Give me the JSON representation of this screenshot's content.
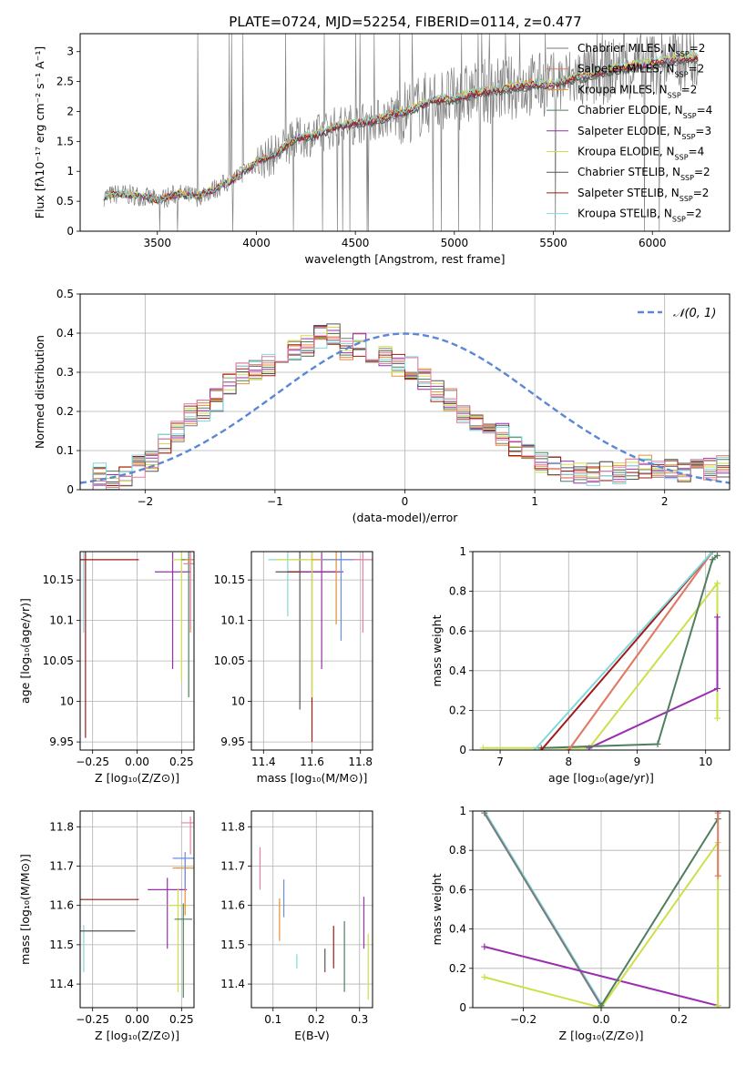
{
  "figure_title": "PLATE=0724, MJD=52254, FIBERID=0114, z=0.477",
  "colors": {
    "chabrier_miles": "#7a7a7a",
    "salpeter_miles": "#e07b6c",
    "kroupa_miles": "#e8902e",
    "chabrier_elodie": "#4f7f5f",
    "salpeter_elodie": "#9a2fb0",
    "kroupa_elodie": "#cde04a",
    "chabrier_stelib": "#555555",
    "salpeter_stelib": "#a31818",
    "kroupa_stelib": "#7fd9df",
    "normal_curve": "#5b87d6",
    "extra_pink": "#e47fa8",
    "extra_blue": "#6a8fe0"
  },
  "chart_data": [
    {
      "id": "spectrum",
      "type": "line",
      "title": "PLATE=0724, MJD=52254, FIBERID=0114, z=0.477",
      "xlabel": "wavelength [Angstrom, rest frame]",
      "ylabel": "Flux [fλ10⁻¹⁷ erg cm⁻² s⁻¹ A⁻¹]",
      "xlim": [
        3110,
        6390
      ],
      "ylim": [
        0,
        3.3
      ],
      "xticks": [
        3500,
        4000,
        4500,
        5000,
        5500,
        6000
      ],
      "yticks": [
        0.0,
        0.5,
        1.0,
        1.5,
        2.0,
        2.5,
        3.0
      ],
      "grid": false,
      "legend": "top-right",
      "data_anchor_x": [
        3230,
        3300,
        3400,
        3500,
        3600,
        3700,
        3800,
        3900,
        4000,
        4100,
        4200,
        4300,
        4400,
        4500,
        4600,
        4700,
        4800,
        4900,
        5000,
        5100,
        5200,
        5300,
        5400,
        5500,
        5600,
        5700,
        5800,
        5900,
        6000,
        6100,
        6200
      ],
      "data_model_y": [
        0.58,
        0.62,
        0.6,
        0.52,
        0.62,
        0.58,
        0.72,
        0.9,
        1.15,
        1.3,
        1.55,
        1.6,
        1.75,
        1.8,
        1.85,
        1.95,
        2.05,
        2.2,
        2.2,
        2.3,
        2.35,
        2.4,
        2.45,
        2.45,
        2.55,
        2.6,
        2.7,
        2.75,
        2.8,
        2.85,
        2.9
      ],
      "series": [
        {
          "name": "Chabrier MILES, N_SSP=2",
          "color_key": "chabrier_miles"
        },
        {
          "name": "Salpeter MILES, N_SSP=2",
          "color_key": "salpeter_miles"
        },
        {
          "name": "Kroupa MILES, N_SSP=2",
          "color_key": "kroupa_miles"
        },
        {
          "name": "Chabrier ELODIE, N_SSP=4",
          "color_key": "chabrier_elodie"
        },
        {
          "name": "Salpeter ELODIE, N_SSP=3",
          "color_key": "salpeter_elodie"
        },
        {
          "name": "Kroupa ELODIE, N_SSP=4",
          "color_key": "kroupa_elodie"
        },
        {
          "name": "Chabrier STELIB, N_SSP=2",
          "color_key": "chabrier_stelib"
        },
        {
          "name": "Salpeter STELIB, N_SSP=2",
          "color_key": "salpeter_stelib"
        },
        {
          "name": "Kroupa STELIB, N_SSP=2",
          "color_key": "kroupa_stelib"
        }
      ]
    },
    {
      "id": "residuals",
      "type": "line",
      "xlabel": "(data-model)/error",
      "ylabel": "Normed distribution",
      "xlim": [
        -2.5,
        2.5
      ],
      "ylim": [
        0,
        0.5
      ],
      "xticks": [
        -2,
        -1,
        0,
        1,
        2
      ],
      "yticks": [
        0.0,
        0.1,
        0.2,
        0.3,
        0.4,
        0.5
      ],
      "grid": true,
      "legend": "top-right",
      "legend_label": "𝒩(0, 1)",
      "bin_width": 0.1,
      "bin_start": -2.5,
      "histogram_profile": [
        0.03,
        0.02,
        0.04,
        0.03,
        0.02,
        0.03,
        0.04,
        0.05,
        0.06,
        0.08,
        0.07,
        0.1,
        0.12,
        0.14,
        0.15,
        0.17,
        0.19,
        0.21,
        0.2,
        0.24,
        0.23,
        0.25,
        0.27,
        0.29,
        0.3,
        0.28,
        0.31,
        0.33,
        0.32,
        0.34,
        0.33,
        0.35,
        0.36,
        0.34,
        0.37,
        0.38,
        0.39,
        0.37,
        0.4,
        0.38,
        0.36,
        0.39,
        0.37,
        0.35,
        0.34,
        0.33,
        0.34,
        0.36,
        0.32,
        0.3,
        0.31,
        0.29,
        0.28,
        0.27,
        0.25,
        0.26,
        0.23,
        0.22,
        0.2,
        0.19,
        0.18,
        0.17,
        0.16,
        0.15,
        0.14,
        0.12,
        0.11,
        0.1,
        0.09,
        0.08,
        0.07,
        0.06,
        0.06,
        0.05,
        0.05,
        0.04,
        0.04,
        0.05,
        0.04,
        0.04,
        0.05,
        0.05,
        0.04,
        0.04,
        0.05,
        0.05,
        0.06,
        0.05,
        0.05,
        0.06,
        0.05,
        0.06,
        0.05,
        0.05,
        0.06,
        0.06,
        0.05,
        0.05,
        0.06,
        0.06
      ]
    },
    {
      "id": "age_vs_z",
      "type": "scatter",
      "xlabel": "Z [log₁₀(Z/Z⊙)]",
      "ylabel": "age  [log₁₀(age/yr)]",
      "xlim": [
        -0.32,
        0.32
      ],
      "ylim": [
        9.94,
        10.185
      ],
      "xticks": [
        -0.25,
        0.0,
        0.25
      ],
      "xtick_labels": [
        "−0.25",
        "0.00",
        "0.25"
      ],
      "yticks": [
        9.95,
        10.0,
        10.05,
        10.1,
        10.15
      ],
      "grid": true,
      "points": [
        {
          "x": -0.3,
          "y": 10.175,
          "xerr": 0.02,
          "yerr": 0.09,
          "color_key": "kroupa_stelib"
        },
        {
          "x": -0.29,
          "y": 10.175,
          "xerr": 0.3,
          "yerr": 0.22,
          "color_key": "salpeter_stelib"
        },
        {
          "x": 0.2,
          "y": 10.16,
          "xerr": 0.1,
          "yerr": 0.12,
          "color_key": "salpeter_elodie"
        },
        {
          "x": 0.25,
          "y": 10.175,
          "xerr": 0.05,
          "yerr": 0.15,
          "color_key": "kroupa_elodie"
        },
        {
          "x": 0.29,
          "y": 10.175,
          "xerr": 0.04,
          "yerr": 0.17,
          "color_key": "chabrier_elodie"
        },
        {
          "x": 0.3,
          "y": 10.175,
          "xerr": 0.03,
          "yerr": 0.09,
          "color_key": "kroupa_miles"
        },
        {
          "x": 0.3,
          "y": 10.17,
          "xerr": 0.04,
          "yerr": 0.08,
          "color_key": "extra_pink"
        }
      ]
    },
    {
      "id": "age_vs_mass",
      "type": "scatter",
      "xlabel": "mass [log₁₀(M/M⊙)]",
      "ylabel": "",
      "xlim": [
        11.35,
        11.85
      ],
      "ylim": [
        9.94,
        10.185
      ],
      "xticks": [
        11.4,
        11.6,
        11.8
      ],
      "yticks": [
        9.95,
        10.0,
        10.05,
        10.1,
        10.15
      ],
      "grid": true,
      "points": [
        {
          "x": 11.5,
          "y": 10.175,
          "xerr": 0.08,
          "yerr": 0.07,
          "color_key": "kroupa_stelib"
        },
        {
          "x": 11.55,
          "y": 10.16,
          "xerr": 0.1,
          "yerr": 0.17,
          "color_key": "chabrier_stelib"
        },
        {
          "x": 11.6,
          "y": 10.16,
          "xerr": 0.1,
          "yerr": 0.21,
          "color_key": "salpeter_stelib"
        },
        {
          "x": 11.64,
          "y": 10.16,
          "xerr": 0.09,
          "yerr": 0.12,
          "color_key": "salpeter_elodie"
        },
        {
          "x": 11.6,
          "y": 10.175,
          "xerr": 0.15,
          "yerr": 0.17,
          "color_key": "kroupa_elodie"
        },
        {
          "x": 11.7,
          "y": 10.175,
          "xerr": 0.1,
          "yerr": 0.08,
          "color_key": "kroupa_miles"
        },
        {
          "x": 11.72,
          "y": 10.175,
          "xerr": 0.08,
          "yerr": 0.1,
          "color_key": "extra_blue"
        },
        {
          "x": 11.81,
          "y": 10.175,
          "xerr": 0.04,
          "yerr": 0.09,
          "color_key": "extra_pink"
        }
      ]
    },
    {
      "id": "weight_vs_age",
      "type": "line",
      "xlabel": "age  [log₁₀(age/yr)]",
      "ylabel": "mass weight",
      "xlim": [
        6.6,
        10.35
      ],
      "ylim": [
        0,
        1.0
      ],
      "xticks": [
        7,
        8,
        9,
        10
      ],
      "yticks": [
        0.0,
        0.2,
        0.4,
        0.6,
        0.8,
        1.0
      ],
      "grid": true,
      "series": [
        {
          "color_key": "kroupa_elodie",
          "x": [
            6.75,
            8.3,
            10.17,
            10.17
          ],
          "y": [
            0.01,
            0.01,
            0.84,
            0.16
          ]
        },
        {
          "color_key": "salpeter_elodie",
          "x": [
            8.3,
            10.17,
            10.17
          ],
          "y": [
            0.01,
            0.31,
            0.67
          ]
        },
        {
          "color_key": "chabrier_elodie",
          "x": [
            7.6,
            9.3,
            10.1,
            10.17
          ],
          "y": [
            0.01,
            0.03,
            0.96,
            0.98
          ]
        },
        {
          "color_key": "kroupa_miles",
          "x": [
            8.0,
            10.1
          ],
          "y": [
            0.0,
            1.0
          ]
        },
        {
          "color_key": "salpeter_miles",
          "x": [
            8.0,
            10.1
          ],
          "y": [
            0.0,
            1.0
          ]
        },
        {
          "color_key": "salpeter_stelib",
          "x": [
            7.6,
            10.1
          ],
          "y": [
            0.0,
            1.0
          ]
        },
        {
          "color_key": "kroupa_stelib",
          "x": [
            7.5,
            10.1
          ],
          "y": [
            0.0,
            1.0
          ]
        }
      ]
    },
    {
      "id": "mass_vs_z",
      "type": "scatter",
      "xlabel": "Z [log₁₀(Z/Z⊙)]",
      "ylabel": "mass [log₁₀(M/M⊙)]",
      "xlim": [
        -0.32,
        0.32
      ],
      "ylim": [
        11.34,
        11.84
      ],
      "xticks": [
        -0.25,
        0.0,
        0.25
      ],
      "xtick_labels": [
        "−0.25",
        "0.00",
        "0.25"
      ],
      "yticks": [
        11.4,
        11.5,
        11.6,
        11.7,
        11.8
      ],
      "grid": true,
      "points": [
        {
          "x": -0.3,
          "y": 11.53,
          "xerr": 0.0,
          "yerr": 0.1,
          "color_key": "kroupa_stelib"
        },
        {
          "x": -0.29,
          "y": 11.535,
          "xerr": 0.28,
          "yerr": 0.0,
          "color_key": "chabrier_stelib"
        },
        {
          "x": -0.29,
          "y": 11.615,
          "xerr": 0.3,
          "yerr": 0.0,
          "color_key": "salpeter_stelib"
        },
        {
          "x": 0.17,
          "y": 11.64,
          "xerr": 0.11,
          "yerr": 0.15,
          "color_key": "salpeter_elodie"
        },
        {
          "x": 0.23,
          "y": 11.6,
          "xerr": 0.06,
          "yerr": 0.22,
          "color_key": "kroupa_elodie"
        },
        {
          "x": 0.26,
          "y": 11.565,
          "xerr": 0.05,
          "yerr": 0.2,
          "color_key": "chabrier_elodie"
        },
        {
          "x": 0.27,
          "y": 11.695,
          "xerr": 0.07,
          "yerr": 0.12,
          "color_key": "kroupa_miles"
        },
        {
          "x": 0.27,
          "y": 11.72,
          "xerr": 0.07,
          "yerr": 0.08,
          "color_key": "extra_blue"
        },
        {
          "x": 0.3,
          "y": 11.81,
          "xerr": 0.05,
          "yerr": 0.08,
          "color_key": "extra_pink"
        }
      ]
    },
    {
      "id": "mass_vs_ebv",
      "type": "scatter",
      "xlabel": "E(B-V)",
      "ylabel": "",
      "xlim": [
        0.05,
        0.33
      ],
      "ylim": [
        11.34,
        11.84
      ],
      "xticks": [
        0.1,
        0.2,
        0.3
      ],
      "yticks": [
        11.4,
        11.5,
        11.6,
        11.7,
        11.8
      ],
      "grid": true,
      "points": [
        {
          "x": 0.07,
          "y": 11.73,
          "xerr": 0.0,
          "yerr": 0.09,
          "color_key": "extra_pink"
        },
        {
          "x": 0.115,
          "y": 11.6,
          "xerr": 0.0,
          "yerr": 0.09,
          "color_key": "kroupa_miles"
        },
        {
          "x": 0.125,
          "y": 11.65,
          "xerr": 0.0,
          "yerr": 0.08,
          "color_key": "extra_blue"
        },
        {
          "x": 0.155,
          "y": 11.47,
          "xerr": 0.0,
          "yerr": 0.03,
          "color_key": "kroupa_stelib"
        },
        {
          "x": 0.22,
          "y": 11.48,
          "xerr": 0.0,
          "yerr": 0.05,
          "color_key": "chabrier_stelib"
        },
        {
          "x": 0.24,
          "y": 11.53,
          "xerr": 0.0,
          "yerr": 0.09,
          "color_key": "salpeter_stelib"
        },
        {
          "x": 0.265,
          "y": 11.53,
          "xerr": 0.0,
          "yerr": 0.15,
          "color_key": "chabrier_elodie"
        },
        {
          "x": 0.31,
          "y": 11.6,
          "xerr": 0.0,
          "yerr": 0.11,
          "color_key": "salpeter_elodie"
        },
        {
          "x": 0.32,
          "y": 11.5,
          "xerr": 0.0,
          "yerr": 0.14,
          "color_key": "kroupa_elodie"
        }
      ]
    },
    {
      "id": "weight_vs_z",
      "type": "line",
      "xlabel": "Z [log₁₀(Z/Z⊙)]",
      "ylabel": "mass weight",
      "xlim": [
        -0.33,
        0.33
      ],
      "ylim": [
        0,
        1.0
      ],
      "xticks": [
        -0.2,
        0.0,
        0.2
      ],
      "xtick_labels": [
        "−0.2",
        "0.0",
        "0.2"
      ],
      "yticks": [
        0.0,
        0.2,
        0.4,
        0.6,
        0.8,
        1.0
      ],
      "grid": true,
      "series": [
        {
          "color_key": "kroupa_stelib",
          "x": [
            -0.3,
            0.0
          ],
          "y": [
            1.0,
            0.02
          ]
        },
        {
          "color_key": "chabrier_miles",
          "x": [
            -0.3,
            0.0
          ],
          "y": [
            0.99,
            0.01
          ]
        },
        {
          "color_key": "salpeter_elodie",
          "x": [
            -0.3,
            0.3
          ],
          "y": [
            0.31,
            0.01
          ]
        },
        {
          "color_key": "kroupa_elodie",
          "x": [
            -0.3,
            0.0,
            0.3,
            0.3
          ],
          "y": [
            0.155,
            0.0,
            0.84,
            0.01
          ]
        },
        {
          "color_key": "chabrier_elodie",
          "x": [
            0.0,
            0.3,
            0.3
          ],
          "y": [
            0.01,
            0.96,
            1.0
          ]
        },
        {
          "color_key": "salpeter_miles",
          "x": [
            0.3,
            0.3
          ],
          "y": [
            0.67,
            0.99
          ]
        }
      ]
    }
  ]
}
